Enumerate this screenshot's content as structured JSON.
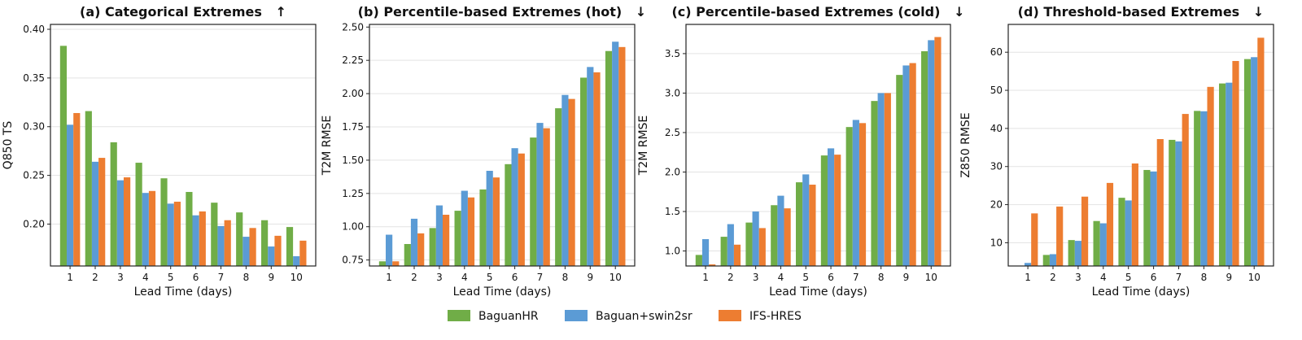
{
  "colors": {
    "BaguanHR": "#70ad47",
    "Baguan+swin2sr": "#5b9bd5",
    "IFS-HRES": "#ed7d31"
  },
  "legend": [
    "BaguanHR",
    "Baguan+swin2sr",
    "IFS-HRES"
  ],
  "chart_data": [
    {
      "type": "bar",
      "title": "(a) Categorical Extremes",
      "arrow": "↑",
      "xlabel": "Lead Time (days)",
      "ylabel": "Q850 TS",
      "categories": [
        "1",
        "2",
        "3",
        "4",
        "5",
        "6",
        "7",
        "8",
        "9",
        "10"
      ],
      "ylim": [
        0.157,
        0.405
      ],
      "yticks": [
        0.2,
        0.25,
        0.3,
        0.35,
        0.4
      ],
      "ytick_labels": [
        "0.20",
        "0.25",
        "0.30",
        "0.35",
        "0.40"
      ],
      "grid": true,
      "series": [
        {
          "name": "BaguanHR",
          "values": [
            0.383,
            0.316,
            0.284,
            0.263,
            0.247,
            0.233,
            0.222,
            0.212,
            0.204,
            0.197
          ]
        },
        {
          "name": "Baguan+swin2sr",
          "values": [
            0.302,
            0.264,
            0.245,
            0.232,
            0.221,
            0.209,
            0.198,
            0.187,
            0.177,
            0.167
          ]
        },
        {
          "name": "IFS-HRES",
          "values": [
            0.314,
            0.268,
            0.248,
            0.234,
            0.223,
            0.213,
            0.204,
            0.196,
            0.188,
            0.183
          ]
        }
      ]
    },
    {
      "type": "bar",
      "title": "(b) Percentile-based Extremes (hot)",
      "arrow": "↓",
      "xlabel": "Lead Time (days)",
      "ylabel": "T2M RMSE",
      "categories": [
        "1",
        "2",
        "3",
        "4",
        "5",
        "6",
        "7",
        "8",
        "9",
        "10"
      ],
      "ylim": [
        0.705,
        2.52
      ],
      "yticks": [
        0.75,
        1.0,
        1.25,
        1.5,
        1.75,
        2.0,
        2.25,
        2.5
      ],
      "ytick_labels": [
        "0.75",
        "1.00",
        "1.25",
        "1.50",
        "1.75",
        "2.00",
        "2.25",
        "2.50"
      ],
      "grid": true,
      "series": [
        {
          "name": "BaguanHR",
          "values": [
            0.74,
            0.87,
            0.99,
            1.12,
            1.28,
            1.47,
            1.67,
            1.89,
            2.12,
            2.32
          ]
        },
        {
          "name": "Baguan+swin2sr",
          "values": [
            0.94,
            1.06,
            1.16,
            1.27,
            1.42,
            1.59,
            1.78,
            1.99,
            2.2,
            2.39
          ]
        },
        {
          "name": "IFS-HRES",
          "values": [
            0.74,
            0.95,
            1.09,
            1.22,
            1.37,
            1.55,
            1.74,
            1.96,
            2.16,
            2.35
          ]
        }
      ]
    },
    {
      "type": "bar",
      "title": "(c) Percentile-based Extremes (cold)",
      "arrow": "↓",
      "xlabel": "Lead Time (days)",
      "ylabel": "T2M RMSE",
      "categories": [
        "1",
        "2",
        "3",
        "4",
        "5",
        "6",
        "7",
        "8",
        "9",
        "10"
      ],
      "ylim": [
        0.81,
        3.87
      ],
      "yticks": [
        1.0,
        1.5,
        2.0,
        2.5,
        3.0,
        3.5
      ],
      "ytick_labels": [
        "1.0",
        "1.5",
        "2.0",
        "2.5",
        "3.0",
        "3.5"
      ],
      "grid": true,
      "series": [
        {
          "name": "BaguanHR",
          "values": [
            0.95,
            1.18,
            1.36,
            1.58,
            1.87,
            2.21,
            2.57,
            2.9,
            3.23,
            3.53
          ]
        },
        {
          "name": "Baguan+swin2sr",
          "values": [
            1.15,
            1.34,
            1.5,
            1.7,
            1.97,
            2.3,
            2.66,
            3.0,
            3.35,
            3.67
          ]
        },
        {
          "name": "IFS-HRES",
          "values": [
            0.83,
            1.08,
            1.29,
            1.54,
            1.84,
            2.22,
            2.62,
            3.0,
            3.38,
            3.71
          ]
        }
      ]
    },
    {
      "type": "bar",
      "title": "(d) Threshold-based Extremes",
      "arrow": "↓",
      "xlabel": "Lead Time (days)",
      "ylabel": "Z850 RMSE",
      "categories": [
        "1",
        "2",
        "3",
        "4",
        "5",
        "6",
        "7",
        "8",
        "9",
        "10"
      ],
      "ylim": [
        3.9,
        67.3
      ],
      "yticks": [
        10,
        20,
        30,
        40,
        50,
        60
      ],
      "ytick_labels": [
        "10",
        "20",
        "30",
        "40",
        "50",
        "60"
      ],
      "grid": true,
      "series": [
        {
          "name": "BaguanHR",
          "values": [
            4.0,
            6.8,
            10.7,
            15.7,
            21.8,
            29.1,
            37.0,
            44.6,
            51.8,
            58.2
          ]
        },
        {
          "name": "Baguan+swin2sr",
          "values": [
            4.7,
            7.0,
            10.5,
            15.1,
            21.1,
            28.7,
            36.6,
            44.5,
            52.0,
            58.7
          ]
        },
        {
          "name": "IFS-HRES",
          "values": [
            17.7,
            19.5,
            22.1,
            25.7,
            30.8,
            37.2,
            43.8,
            50.9,
            57.7,
            63.8
          ]
        }
      ]
    }
  ]
}
